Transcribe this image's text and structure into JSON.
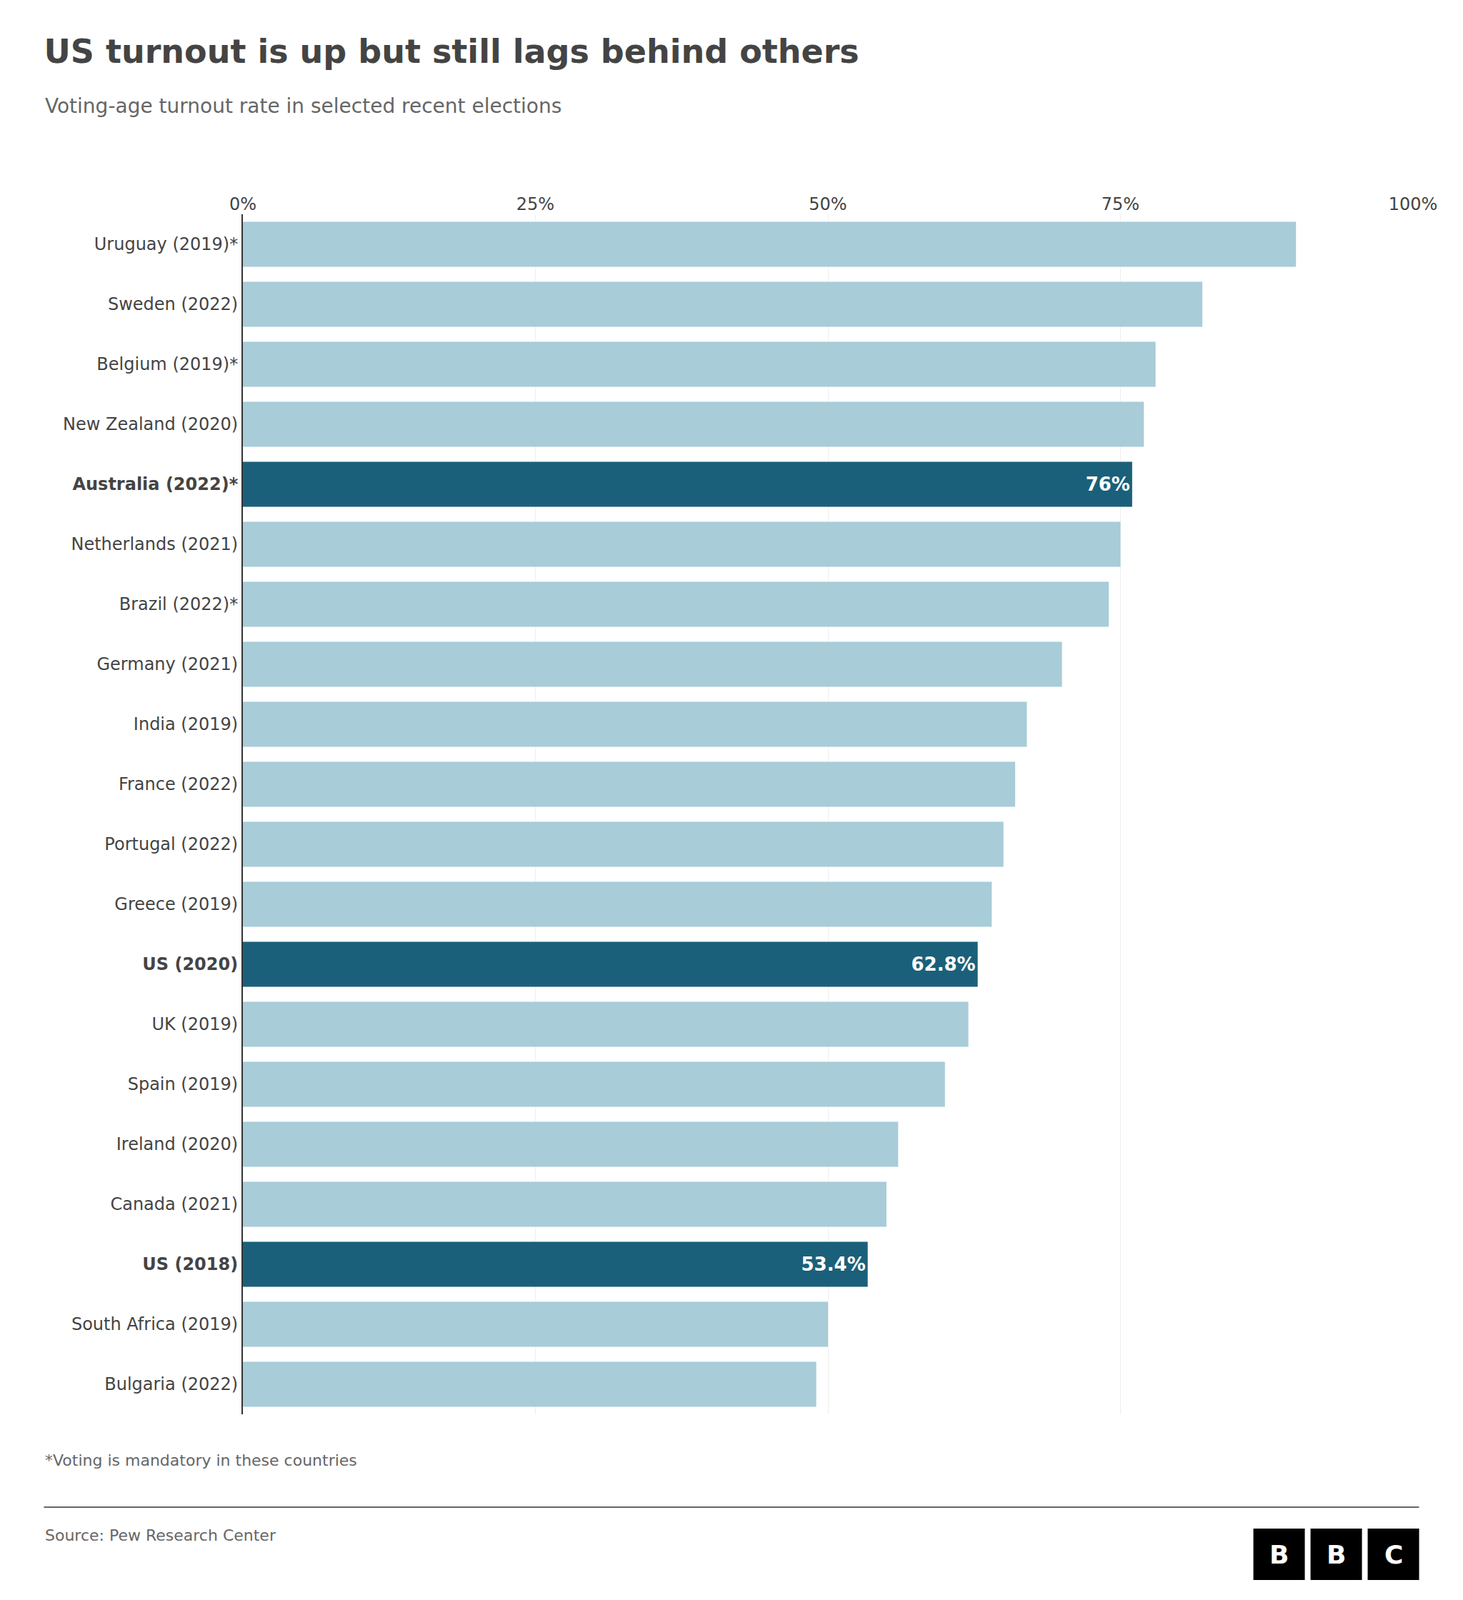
{
  "chart_data": {
    "type": "bar",
    "orientation": "horizontal",
    "title": "US turnout is up but still lags behind others",
    "subtitle": "Voting-age turnout rate in selected recent elections",
    "footnote": "*Voting is mandatory in these countries",
    "source": "Source: Pew Research Center",
    "logo": [
      "B",
      "B",
      "C"
    ],
    "categories": [
      "Uruguay (2019)*",
      "Sweden (2022)",
      "Belgium (2019)*",
      "New Zealand (2020)",
      "Australia (2022)*",
      "Netherlands (2021)",
      "Brazil (2022)*",
      "Germany (2021)",
      "India (2019)",
      "France (2022)",
      "Portugal (2022)",
      "Greece (2019)",
      "US (2020)",
      "UK (2019)",
      "Spain (2019)",
      "Ireland (2020)",
      "Canada (2021)",
      "US (2018)",
      "South Africa (2019)",
      "Bulgaria (2022)"
    ],
    "values": [
      90,
      82,
      78,
      77,
      76,
      75,
      74,
      70,
      67,
      66,
      65,
      64,
      62.8,
      62,
      60,
      56,
      55,
      53.4,
      50,
      49
    ],
    "value_labels": [
      null,
      null,
      null,
      null,
      "76%",
      null,
      null,
      null,
      null,
      null,
      null,
      null,
      "62.8%",
      null,
      null,
      null,
      null,
      "53.4%",
      null,
      null
    ],
    "colors": [
      "#a8ccd8",
      "#a8ccd8",
      "#a8ccd8",
      "#a8ccd8",
      "#1b607a",
      "#a8ccd8",
      "#a8ccd8",
      "#a8ccd8",
      "#a8ccd8",
      "#a8ccd8",
      "#a8ccd8",
      "#a8ccd8",
      "#1b607a",
      "#a8ccd8",
      "#a8ccd8",
      "#a8ccd8",
      "#a8ccd8",
      "#1b607a",
      "#a8ccd8",
      "#a8ccd8"
    ],
    "xlim": [
      0,
      100
    ],
    "xticks": [
      {
        "value": 0,
        "label": "0%"
      },
      {
        "value": 25,
        "label": "25%"
      },
      {
        "value": 50,
        "label": "50%"
      },
      {
        "value": 75,
        "label": "75%"
      },
      {
        "value": 100,
        "label": "100%"
      }
    ],
    "grid": true
  }
}
